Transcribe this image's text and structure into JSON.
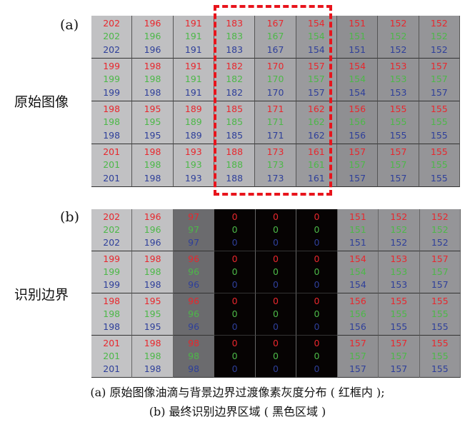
{
  "panel_a": {
    "label": "(a)",
    "side_label": "原始图像",
    "values": [
      [
        202,
        196,
        191,
        183,
        167,
        154,
        151,
        152,
        152
      ],
      [
        199,
        198,
        191,
        182,
        170,
        157,
        154,
        153,
        157
      ],
      [
        198,
        195,
        189,
        185,
        171,
        162,
        156,
        155,
        155
      ],
      [
        201,
        198,
        193,
        188,
        173,
        161,
        157,
        157,
        155
      ]
    ],
    "column_shades": [
      "#c1c1c3",
      "#c0c0c2",
      "#bdbdbf",
      "#b5b5b8",
      "#a6a6a9",
      "#9a9a9d",
      "#8f8f92",
      "#939396",
      "#959598"
    ]
  },
  "panel_b": {
    "label": "(b)",
    "side_label": "识别边界",
    "values": [
      [
        202,
        196,
        97,
        0,
        0,
        0,
        151,
        152,
        152
      ],
      [
        199,
        198,
        96,
        0,
        0,
        0,
        154,
        153,
        157
      ],
      [
        198,
        195,
        96,
        0,
        0,
        0,
        156,
        155,
        155
      ],
      [
        201,
        198,
        98,
        0,
        0,
        0,
        157,
        157,
        155
      ]
    ],
    "column_shades": [
      "#c3c3c5",
      "#c1c1c3",
      "#6b6b6e",
      "#060303",
      "#060303",
      "#060303",
      "#909093",
      "#939396",
      "#959598"
    ]
  },
  "colors": {
    "red_channel": "#e8272d",
    "green_channel": "#4cb848",
    "blue_channel": "#2e3f9a",
    "highlight_box": "#e8141c"
  },
  "caption": {
    "line1": "(a) 原始图像油滴与背景边界过渡像素灰度分布 ( 红框内 );",
    "line2": "(b) 最终识别边界区域 ( 黑色区域 )"
  }
}
